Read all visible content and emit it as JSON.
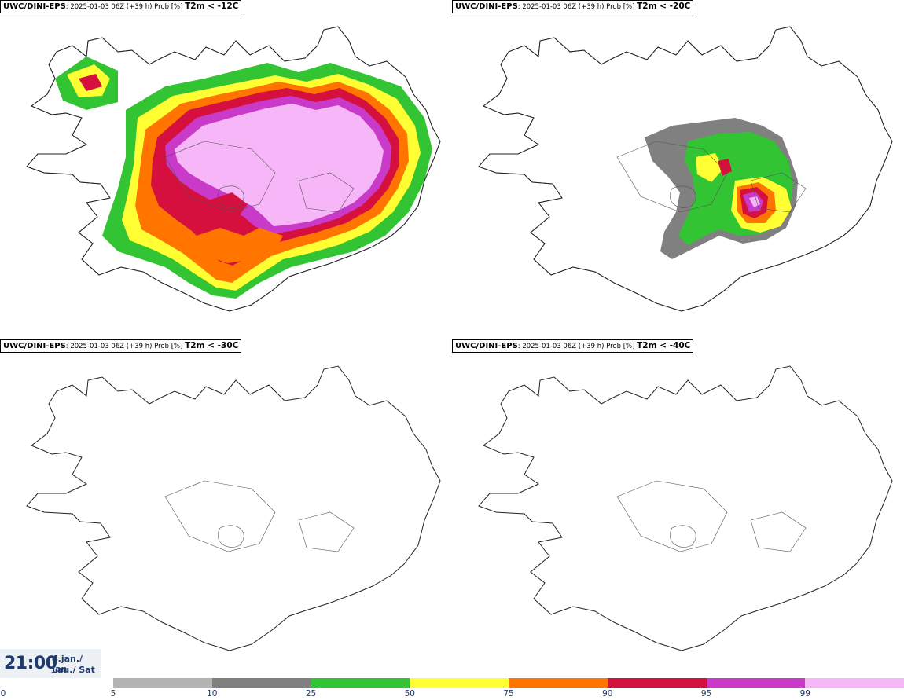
{
  "panels": [
    {
      "model": "UWC/DINI-EPS",
      "meta": ": 2025-01-03 06Z (+39 h) Prob [%]",
      "threshold": "T2m < -12C"
    },
    {
      "model": "UWC/DINI-EPS",
      "meta": ": 2025-01-03 06Z (+39 h) Prob [%]",
      "threshold": "T2m < -20C"
    },
    {
      "model": "UWC/DINI-EPS",
      "meta": ": 2025-01-03 06Z (+39 h) Prob [%]",
      "threshold": "T2m < -30C"
    },
    {
      "model": "UWC/DINI-EPS",
      "meta": ": 2025-01-03 06Z (+39 h) Prob [%]",
      "threshold": "T2m < -40C"
    }
  ],
  "valid": {
    "time": "21:00",
    "date_line1": "4.jan./ Jan",
    "date_line2": "Lau./ Sat"
  },
  "colorbar": {
    "ticks": [
      "0",
      "5",
      "10",
      "25",
      "50",
      "75",
      "90",
      "95",
      "99"
    ],
    "colors": [
      "#b3b3b3",
      "#808080",
      "#33c433",
      "#ffff33",
      "#ff7500",
      "#d5103f",
      "#c93ac9",
      "#f7b6f7"
    ]
  }
}
